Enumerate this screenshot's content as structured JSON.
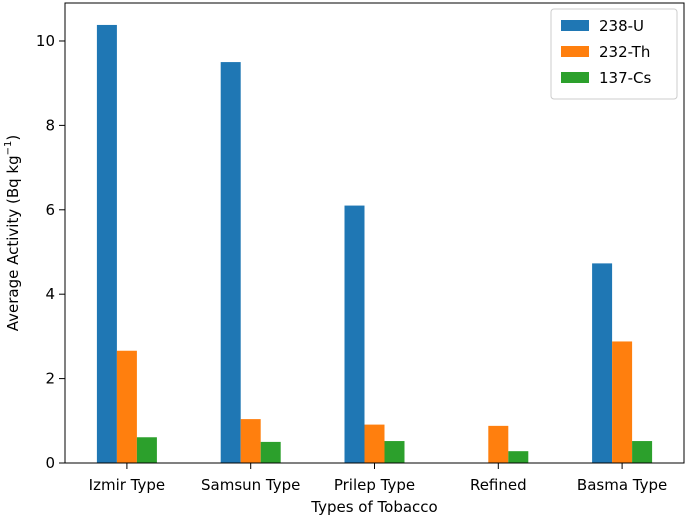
{
  "chart_data": {
    "type": "bar",
    "categories": [
      "Izmir Type",
      "Samsun Type",
      "Prilep Type",
      "Refined",
      "Basma Type"
    ],
    "series": [
      {
        "name": "238-U",
        "color": "#1f77b4",
        "values": [
          10.38,
          9.5,
          6.1,
          0,
          4.73
        ]
      },
      {
        "name": "232-Th",
        "color": "#ff7f0e",
        "values": [
          2.66,
          1.04,
          0.91,
          0.88,
          2.88
        ]
      },
      {
        "name": "137-Cs",
        "color": "#2ca02c",
        "values": [
          0.61,
          0.5,
          0.52,
          0.28,
          0.52
        ]
      }
    ],
    "xlabel": "Types of Tobacco",
    "ylabel": "Average Activity (Bq kg",
    "ylabel_superscript": "−1",
    "ylabel_suffix": ")",
    "ylim": [
      0,
      10.9
    ],
    "yticks": [
      0,
      2,
      4,
      6,
      8,
      10
    ],
    "grid": false,
    "legend_position": "top-right"
  }
}
